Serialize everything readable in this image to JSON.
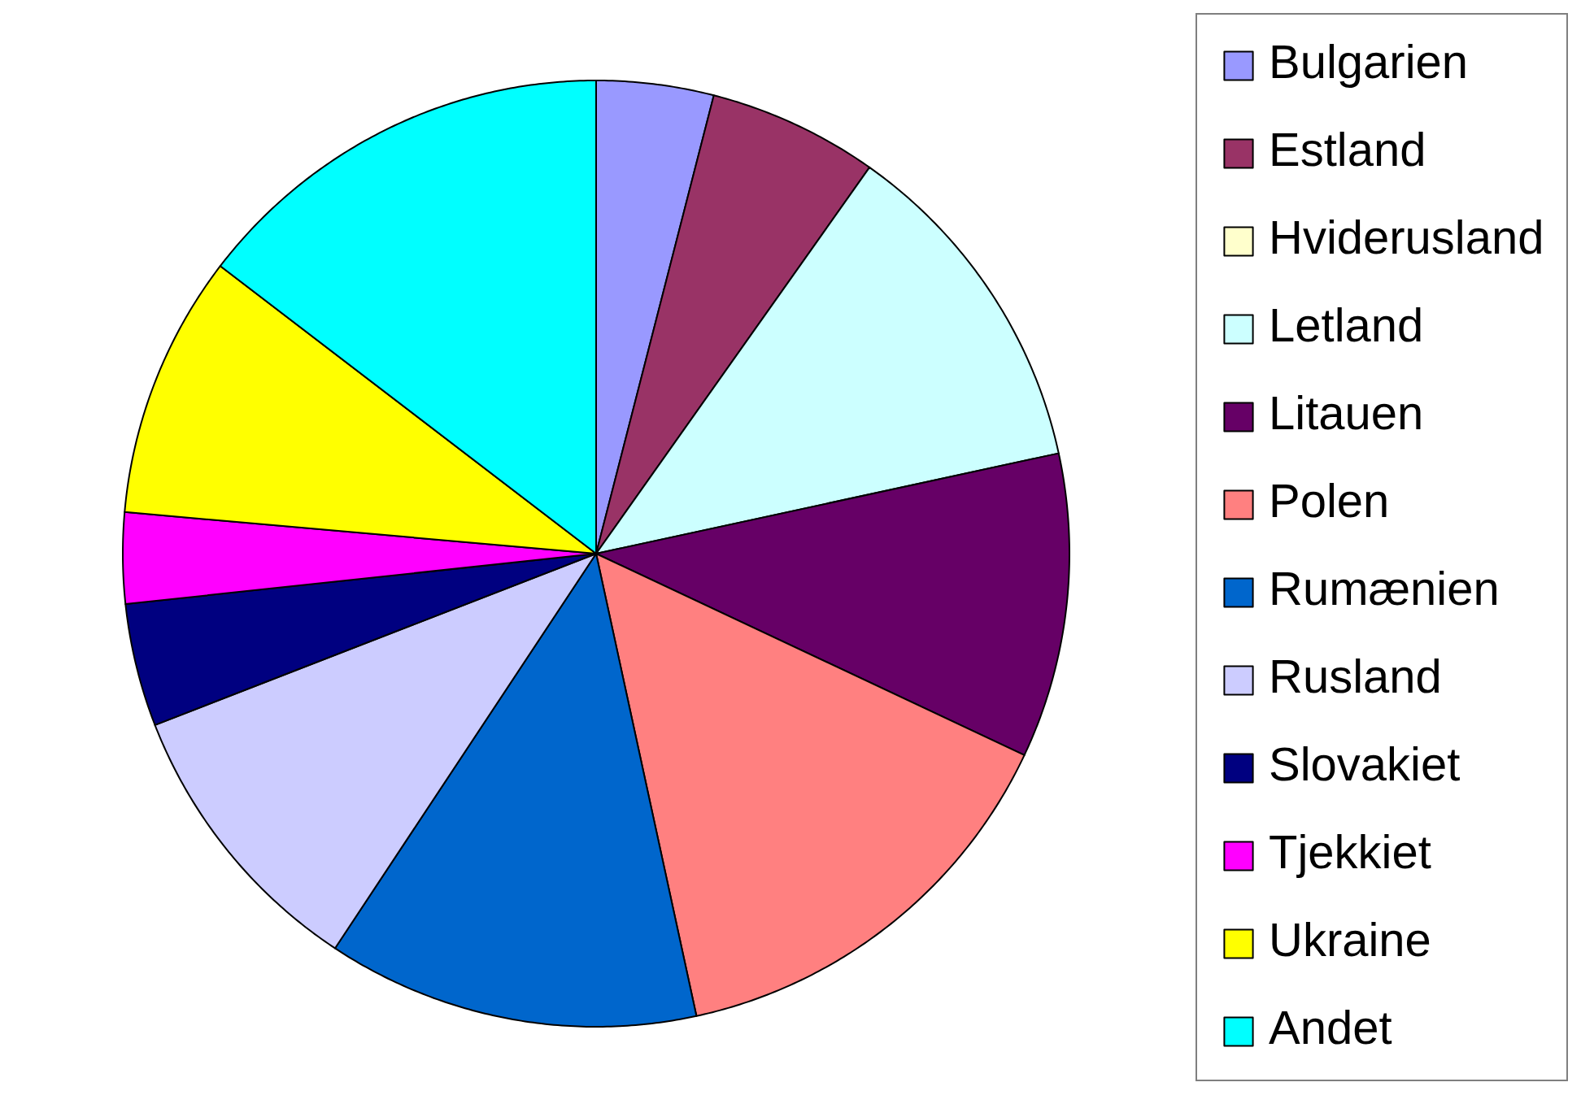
{
  "chart_data": {
    "type": "pie",
    "categories": [
      "Bulgarien",
      "Estland",
      "Hviderusland",
      "Letland",
      "Litauen",
      "Polen",
      "Rumænien",
      "Rusland",
      "Slovakiet",
      "Tjekkiet",
      "Ukraine",
      "Andet"
    ],
    "values": [
      4.0,
      5.8,
      0,
      11.8,
      10.4,
      14.6,
      12.7,
      9.8,
      4.2,
      3.1,
      9.0,
      14.6
    ],
    "colors": [
      "#9999ff",
      "#993366",
      "#ffffcc",
      "#ccffff",
      "#660066",
      "#ff8080",
      "#0066cc",
      "#ccccff",
      "#000080",
      "#ff00ff",
      "#ffff00",
      "#00ffff"
    ],
    "legend": "right"
  }
}
